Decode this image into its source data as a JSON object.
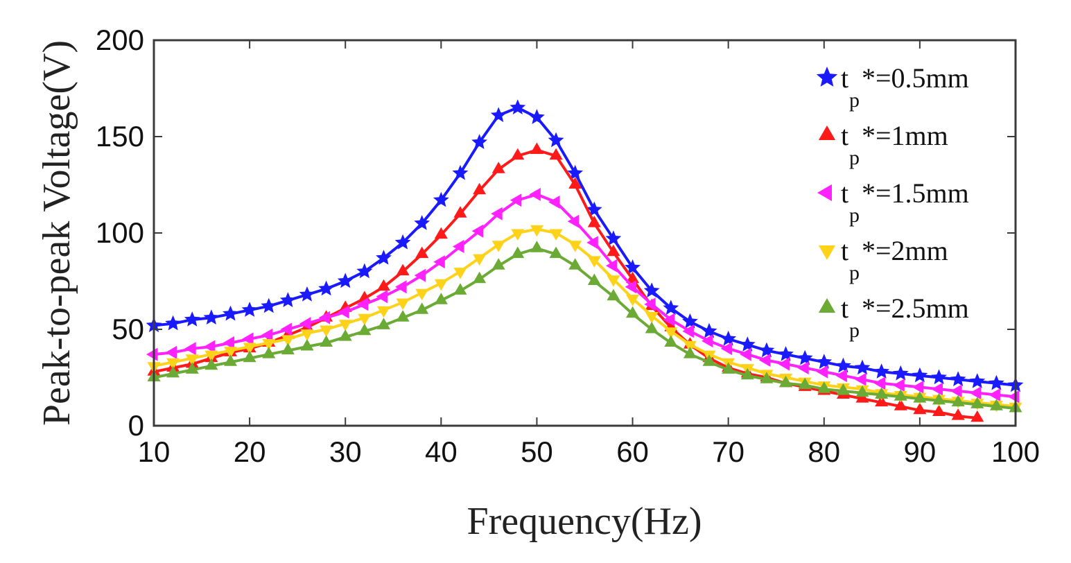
{
  "chart_data": {
    "type": "line",
    "title": "",
    "xlabel": "Frequency(Hz)",
    "ylabel": "Peak-to-peak Voltage(V)",
    "xlim": [
      10,
      100
    ],
    "ylim": [
      0,
      200
    ],
    "xticks": [
      10,
      20,
      30,
      40,
      50,
      60,
      70,
      80,
      90,
      100
    ],
    "yticks": [
      0,
      50,
      100,
      150,
      200
    ],
    "grid": false,
    "legend_position": "top-right",
    "series": [
      {
        "name": "t_p*=0.5mm",
        "legend_main": "t",
        "legend_sub": "p",
        "legend_tail": "*=0.5mm",
        "color": "#1a1aff",
        "marker": "star",
        "x": [
          10,
          12,
          14,
          16,
          18,
          20,
          22,
          24,
          26,
          28,
          30,
          32,
          34,
          36,
          38,
          40,
          42,
          44,
          46,
          48,
          50,
          52,
          54,
          56,
          58,
          60,
          62,
          64,
          66,
          68,
          70,
          72,
          74,
          76,
          78,
          80,
          82,
          84,
          86,
          88,
          90,
          92,
          94,
          96,
          98,
          100
        ],
        "values": [
          52,
          53,
          55,
          56,
          58,
          60,
          62,
          65,
          68,
          71,
          75,
          80,
          87,
          95,
          105,
          117,
          131,
          147,
          161,
          165,
          160,
          148,
          131,
          112,
          97,
          82,
          70,
          61,
          54,
          49,
          45,
          42,
          39,
          37,
          35,
          33,
          31,
          30,
          28,
          27,
          26,
          25,
          24,
          23,
          22,
          21
        ]
      },
      {
        "name": "t_p*=1mm",
        "legend_main": "t",
        "legend_sub": "p",
        "legend_tail": "*=1mm",
        "color": "#ff1a1a",
        "marker": "triangle-up",
        "x": [
          10,
          12,
          14,
          16,
          18,
          20,
          22,
          24,
          26,
          28,
          30,
          32,
          34,
          36,
          38,
          40,
          42,
          44,
          46,
          48,
          50,
          52,
          54,
          56,
          58,
          60,
          62,
          64,
          66,
          68,
          70,
          72,
          74,
          76,
          78,
          80,
          82,
          84,
          86,
          88,
          90,
          92,
          94,
          96
        ],
        "values": [
          28,
          30,
          32,
          35,
          38,
          40,
          43,
          47,
          51,
          56,
          61,
          66,
          72,
          80,
          89,
          99,
          110,
          122,
          133,
          140,
          143,
          140,
          125,
          105,
          90,
          76,
          62,
          51,
          42,
          35,
          30,
          27,
          25,
          22,
          20,
          18,
          16,
          14,
          12,
          10,
          8,
          7,
          5,
          4
        ]
      },
      {
        "name": "t_p*=1.5mm",
        "legend_main": "t",
        "legend_sub": "p",
        "legend_tail": "*=1.5mm",
        "color": "#ff22ff",
        "marker": "triangle-left",
        "x": [
          10,
          12,
          14,
          16,
          18,
          20,
          22,
          24,
          26,
          28,
          30,
          32,
          34,
          36,
          38,
          40,
          42,
          44,
          46,
          48,
          50,
          52,
          54,
          56,
          58,
          60,
          62,
          64,
          66,
          68,
          70,
          72,
          74,
          76,
          78,
          80,
          82,
          84,
          86,
          88,
          90,
          92,
          94,
          96,
          98,
          100
        ],
        "values": [
          37,
          38,
          40,
          41,
          43,
          45,
          47,
          50,
          53,
          56,
          59,
          63,
          67,
          72,
          78,
          85,
          93,
          101,
          110,
          117,
          120,
          116,
          106,
          95,
          83,
          72,
          63,
          55,
          49,
          44,
          40,
          37,
          34,
          32,
          30,
          28,
          26,
          24,
          22,
          21,
          20,
          19,
          18,
          17,
          16,
          15
        ]
      },
      {
        "name": "t_p*=2mm",
        "legend_main": "t",
        "legend_sub": "p",
        "legend_tail": "*=2mm",
        "color": "#ffd21a",
        "marker": "triangle-down",
        "x": [
          10,
          12,
          14,
          16,
          18,
          20,
          22,
          24,
          26,
          28,
          30,
          32,
          34,
          36,
          38,
          40,
          42,
          44,
          46,
          48,
          50,
          52,
          54,
          56,
          58,
          60,
          62,
          64,
          66,
          68,
          70,
          72,
          74,
          76,
          78,
          80,
          82,
          84,
          86,
          88,
          90,
          92,
          94,
          96,
          98,
          100
        ],
        "values": [
          31,
          33,
          35,
          37,
          39,
          41,
          43,
          45,
          48,
          50,
          53,
          56,
          60,
          64,
          69,
          74,
          80,
          87,
          94,
          100,
          102,
          100,
          94,
          86,
          76,
          66,
          57,
          49,
          42,
          37,
          33,
          30,
          27,
          25,
          23,
          21,
          20,
          19,
          17,
          16,
          15,
          14,
          13,
          12,
          11,
          10
        ]
      },
      {
        "name": "t_p*=2.5mm",
        "legend_main": "t",
        "legend_sub": "p",
        "legend_tail": "*=2.5mm",
        "color": "#6aaa35",
        "marker": "triangle-right",
        "x": [
          10,
          12,
          14,
          16,
          18,
          20,
          22,
          24,
          26,
          28,
          30,
          32,
          34,
          36,
          38,
          40,
          42,
          44,
          46,
          48,
          50,
          52,
          54,
          56,
          58,
          60,
          62,
          64,
          66,
          68,
          70,
          72,
          74,
          76,
          78,
          80,
          82,
          84,
          86,
          88,
          90,
          92,
          94,
          96,
          98,
          100
        ],
        "values": [
          25,
          27,
          29,
          31,
          33,
          35,
          37,
          39,
          41,
          43,
          46,
          49,
          52,
          56,
          60,
          65,
          70,
          76,
          83,
          89,
          92,
          89,
          83,
          75,
          67,
          58,
          50,
          43,
          37,
          33,
          29,
          26,
          24,
          22,
          21,
          19,
          18,
          17,
          16,
          15,
          14,
          13,
          12,
          11,
          10,
          9
        ]
      }
    ]
  }
}
